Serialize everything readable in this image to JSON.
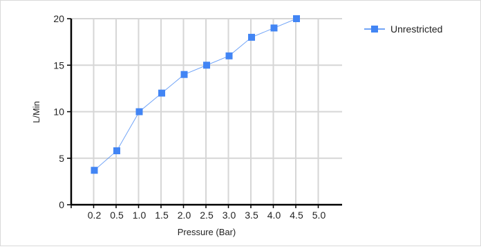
{
  "chart_data": {
    "type": "line",
    "xlabel": "Pressure (Bar)",
    "ylabel": "L/Min",
    "x_categories": [
      "0.2",
      "0.5",
      "1.0",
      "1.5",
      "2.0",
      "2.5",
      "3.0",
      "3.5",
      "4.0",
      "4.5",
      "5.0"
    ],
    "ylim": [
      0,
      20
    ],
    "y_ticks": [
      0,
      5,
      10,
      15,
      20
    ],
    "grid": true,
    "legend_position": "top-right",
    "series": [
      {
        "name": "Unrestricted",
        "color": "#4285f4",
        "marker": "square",
        "x": [
          "0.2",
          "0.5",
          "1.0",
          "1.5",
          "2.0",
          "2.5",
          "3.0",
          "3.5",
          "4.0",
          "4.5"
        ],
        "values": [
          3.7,
          5.8,
          10,
          12,
          14,
          15,
          16,
          18,
          19,
          20
        ]
      }
    ]
  }
}
